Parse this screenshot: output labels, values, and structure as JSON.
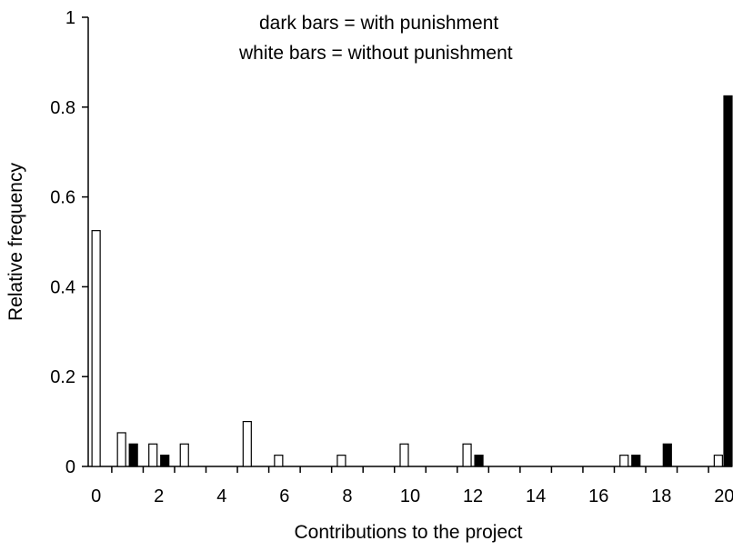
{
  "chart_data": {
    "type": "bar",
    "x": [
      0,
      1,
      2,
      3,
      4,
      5,
      6,
      7,
      8,
      9,
      10,
      11,
      12,
      13,
      14,
      15,
      16,
      17,
      18,
      19,
      20
    ],
    "x_tick_labels": [
      "0",
      "2",
      "4",
      "6",
      "8",
      "10",
      "12",
      "14",
      "16",
      "18",
      "20"
    ],
    "y_tick_labels": [
      "0",
      "0.2",
      "0.4",
      "0.6",
      "0.8",
      "1"
    ],
    "series": [
      {
        "name": "white bars = without punishment",
        "color": "#ffffff",
        "values": [
          0.525,
          0.075,
          0.05,
          0.05,
          0,
          0.1,
          0.025,
          0,
          0.025,
          0,
          0.05,
          0,
          0.05,
          0,
          0,
          0,
          0,
          0.025,
          0,
          0,
          0.025
        ]
      },
      {
        "name": "dark bars = with punishment",
        "color": "#000000",
        "values": [
          0,
          0.05,
          0.025,
          0,
          0,
          0,
          0,
          0,
          0,
          0,
          0,
          0,
          0.025,
          0,
          0,
          0,
          0,
          0.025,
          0.05,
          0,
          0.825
        ]
      }
    ],
    "legend_lines": [
      "dark bars = with punishment",
      "white bars = without punishment"
    ],
    "legend_placement": "top-center",
    "xlabel": "Contributions to the project",
    "ylabel": "Relative frequency",
    "ylim": [
      0,
      1
    ],
    "xlim": [
      0,
      20
    ],
    "grid": false
  }
}
